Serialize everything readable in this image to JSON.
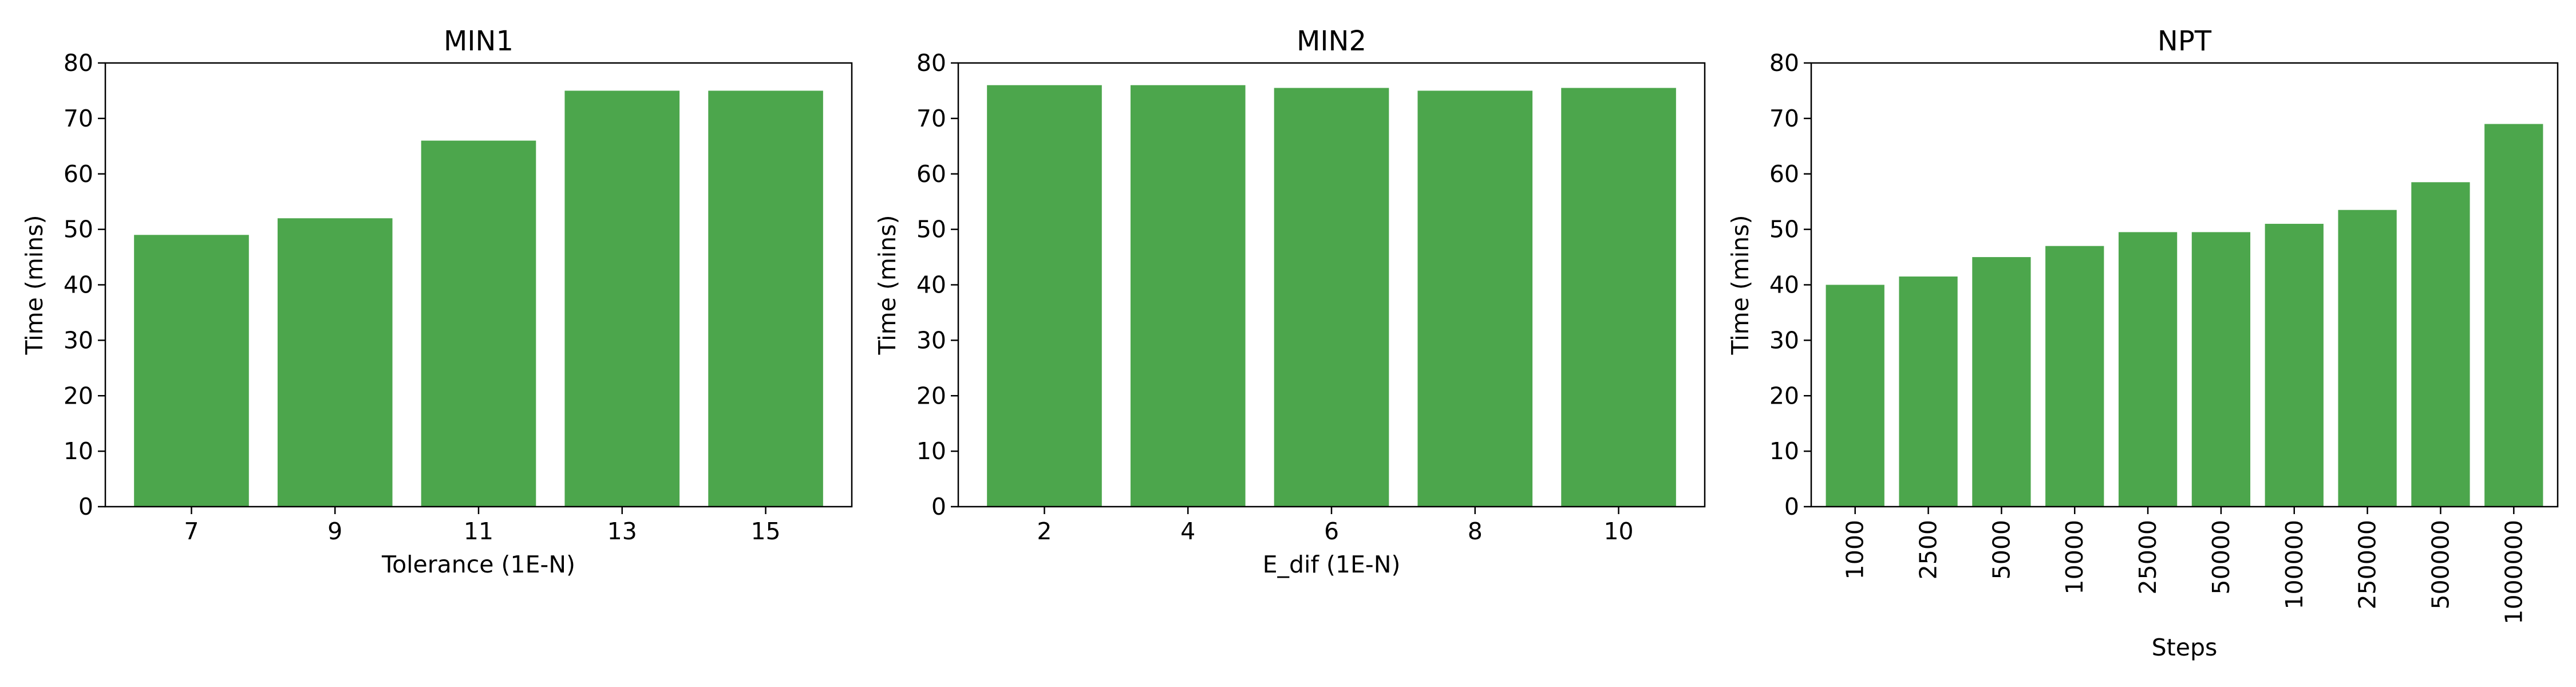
{
  "colors": {
    "bar": "#4ca64c",
    "axis": "#000000",
    "background": "#ffffff"
  },
  "chart_data": [
    {
      "type": "bar",
      "title": "MIN1",
      "xlabel": "Tolerance (1E-N)",
      "ylabel": "Time (mins)",
      "categories": [
        "7",
        "9",
        "11",
        "13",
        "15"
      ],
      "values": [
        49,
        52,
        66,
        75,
        75
      ],
      "ylim": [
        0,
        80
      ],
      "yticks": [
        0,
        10,
        20,
        30,
        40,
        50,
        60,
        70,
        80
      ],
      "grid": false,
      "xtick_rotation": 0
    },
    {
      "type": "bar",
      "title": "MIN2",
      "xlabel": "E_dif (1E-N)",
      "ylabel": "Time (mins)",
      "categories": [
        "2",
        "4",
        "6",
        "8",
        "10"
      ],
      "values": [
        76,
        76,
        75.5,
        75,
        75.5
      ],
      "ylim": [
        0,
        80
      ],
      "yticks": [
        0,
        10,
        20,
        30,
        40,
        50,
        60,
        70,
        80
      ],
      "grid": false,
      "xtick_rotation": 0
    },
    {
      "type": "bar",
      "title": "NPT",
      "xlabel": "Steps",
      "ylabel": "Time (mins)",
      "categories": [
        "1000",
        "2500",
        "5000",
        "10000",
        "25000",
        "50000",
        "100000",
        "250000",
        "500000",
        "1000000"
      ],
      "values": [
        40,
        41.5,
        45,
        47,
        49.5,
        49.5,
        51,
        53.5,
        58.5,
        69
      ],
      "ylim": [
        0,
        80
      ],
      "yticks": [
        0,
        10,
        20,
        30,
        40,
        50,
        60,
        70,
        80
      ],
      "grid": false,
      "xtick_rotation": 90
    }
  ]
}
